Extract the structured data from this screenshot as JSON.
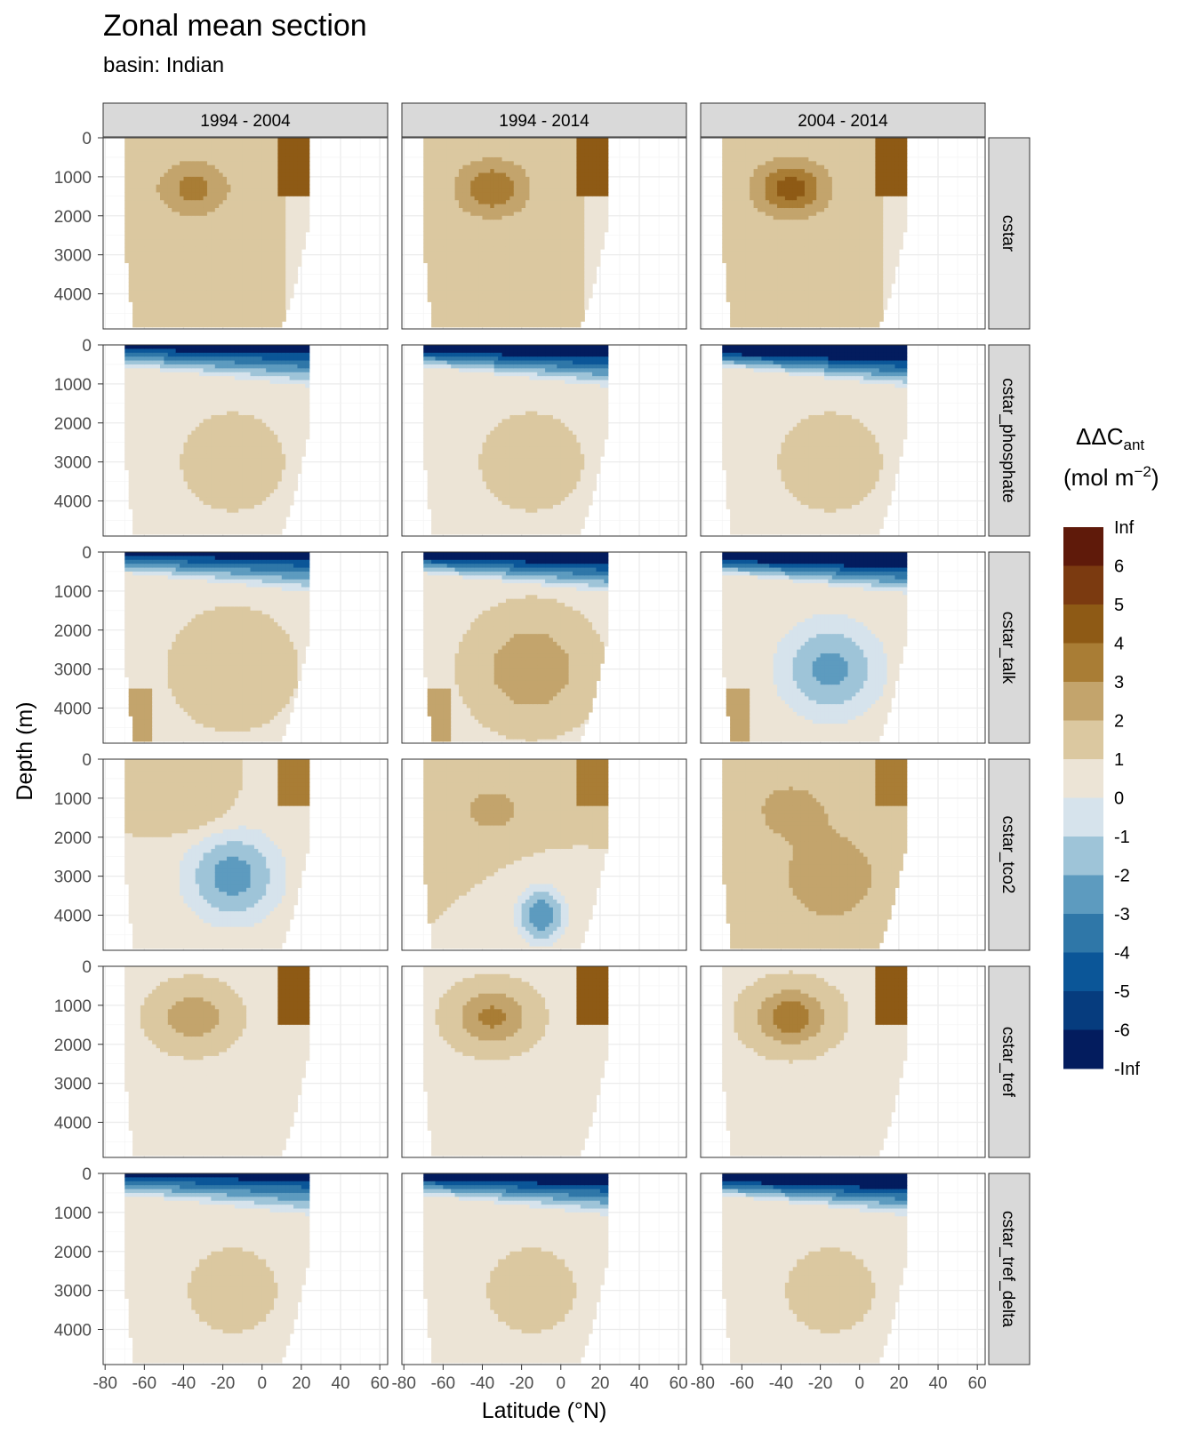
{
  "title": "Zonal mean section",
  "subtitle": "basin: Indian",
  "chart_data": {
    "type": "heatmap",
    "facet_columns": [
      "1994 - 2004",
      "1994 - 2014",
      "2004 - 2014"
    ],
    "facet_rows": [
      "cstar",
      "cstar_phosphate",
      "cstar_talk",
      "cstar_tco2",
      "cstar_tref",
      "cstar_tref_delta"
    ],
    "xlabel": "Latitude (°N)",
    "ylabel": "Depth (m)",
    "x_ticks": [
      "-80",
      "-60",
      "-40",
      "-20",
      "0",
      "20",
      "40",
      "60"
    ],
    "x_tick_values": [
      -80,
      -60,
      -40,
      -20,
      0,
      20,
      40,
      60
    ],
    "xlim": [
      -81,
      64
    ],
    "y_ticks": [
      "0",
      "1000",
      "2000",
      "3000",
      "4000"
    ],
    "y_tick_values": [
      0,
      1000,
      2000,
      3000,
      4000
    ],
    "ylim": [
      4900,
      0
    ],
    "y_reversed": true,
    "data_lat_range": [
      -70,
      24
    ],
    "legend": {
      "title_main": "ΔΔC",
      "title_sub": "ant",
      "unit_prefix": "(mol m",
      "unit_sup": "−2",
      "unit_suffix": ")",
      "breaks": [
        "Inf",
        "6",
        "5",
        "4",
        "3",
        "2",
        "1",
        "0",
        "-1",
        "-2",
        "-3",
        "-4",
        "-5",
        "-6",
        "-Inf"
      ],
      "colors": [
        "#5f1a0a",
        "#7b3a10",
        "#8e5a15",
        "#a97d35",
        "#c3a46c",
        "#dbc8a0",
        "#ece4d6",
        "#d6e3ec",
        "#9ec4d8",
        "#5d9bbf",
        "#2f77a8",
        "#0b5698",
        "#063c7e",
        "#031c5e"
      ],
      "placement": "right"
    },
    "grid": true
  }
}
